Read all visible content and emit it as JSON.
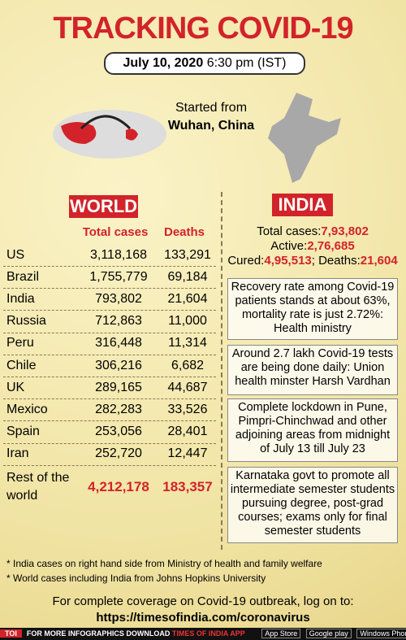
{
  "header": {
    "title": "TRACKING COVID-19",
    "date": "July 10, 2020",
    "time": "6:30 pm (IST)"
  },
  "origin": {
    "line1": "Started from",
    "line2": "Wuhan, China"
  },
  "world": {
    "title": "WORLD",
    "columns": [
      "Total cases",
      "Deaths"
    ],
    "rows": [
      [
        "US",
        "3,118,168",
        "133,291"
      ],
      [
        "Brazil",
        "1,755,779",
        "69,184"
      ],
      [
        "India",
        "793,802",
        "21,604"
      ],
      [
        "Russia",
        "712,863",
        "11,000"
      ],
      [
        "Peru",
        "316,448",
        "11,314"
      ],
      [
        "Chile",
        "306,216",
        "6,682"
      ],
      [
        "UK",
        "289,165",
        "44,687"
      ],
      [
        "Mexico",
        "282,283",
        "33,526"
      ],
      [
        "Spain",
        "253,056",
        "28,401"
      ],
      [
        "Iran",
        "252,720",
        "12,447"
      ]
    ],
    "rest": [
      "Rest of the world",
      "4,212,178",
      "183,357"
    ]
  },
  "india": {
    "title": "INDIA",
    "stats": [
      {
        "label": "Total cases:",
        "value": "7,93,802"
      },
      {
        "label": "Active:",
        "value": "2,76,685"
      },
      {
        "label": "Cured:",
        "value": "4,95,513"
      },
      {
        "label": "; Deaths:",
        "value": "21,604"
      }
    ],
    "news": [
      "Recovery rate among Covid-19 patients stands at about 63%, mortality rate is just 2.72%: Health ministry",
      "Around 2.7 lakh Covid-19 tests are being done daily: Union health minster Harsh Vardhan",
      "Complete lockdown in Pune, Pimpri-Chinchwad and other adjoining areas from midnight of July 13 till July 23",
      "Karnataka govt to promote all intermediate semester students pursuing degree, post-grad courses; exams only for final semester students"
    ]
  },
  "footnotes": [
    "* India cases on right hand side from Ministry of health and family welfare",
    "* World cases including India from Johns Hopkins University"
  ],
  "footer": {
    "text": "For complete coverage on Covid-19 outbreak, log on to:",
    "url": "https://timesofindia.com/coronavirus"
  },
  "bar": {
    "logo": "TOI",
    "promo": "FOR MORE INFOGRAPHICS DOWNLOAD",
    "app": "TIMES OF INDIA APP",
    "stores": [
      "App Store",
      "Google play",
      "Windows Phone"
    ]
  }
}
